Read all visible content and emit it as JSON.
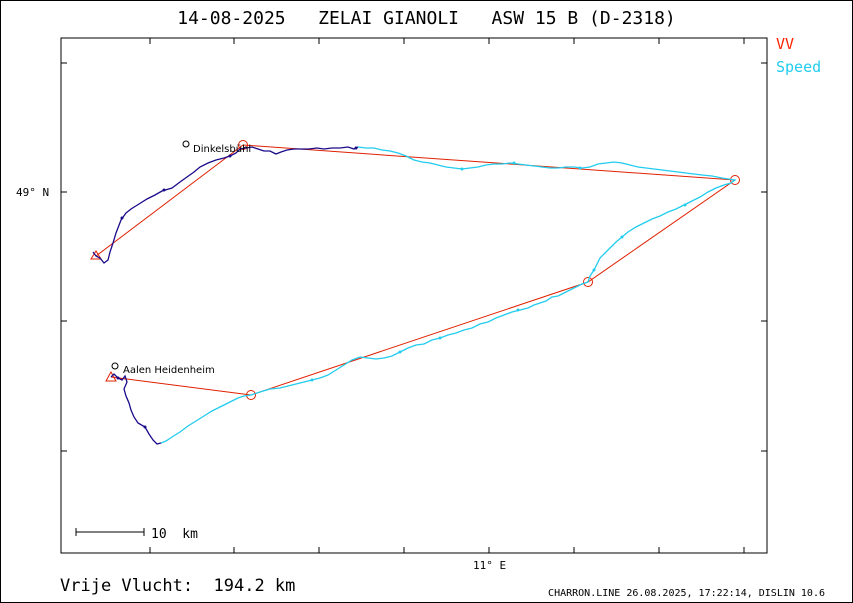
{
  "title": "14-08-2025   ZELAI GIANOLI   ASW 15 B (D-2318)",
  "legend": [
    {
      "label": "VV",
      "color": "#ff2200"
    },
    {
      "label": "Speed",
      "color": "#22ccee"
    }
  ],
  "axes": {
    "lat_label": "49° N",
    "lon_label": "11° E"
  },
  "places": [
    {
      "name": "Dinkelsbühl"
    },
    {
      "name": "Aalen Heidenheim"
    }
  ],
  "scale_bar": {
    "label": "10  km"
  },
  "footer": {
    "distance": "Vrije Vlucht:  194.2 km",
    "credit": "CHARRON.LINE 26.08.2025, 17:22:14, DISLIN 10.6"
  },
  "colors": {
    "task_line": "#e02000",
    "track_dark": "#1a0a8a",
    "track_speed": "#22ccee"
  }
}
